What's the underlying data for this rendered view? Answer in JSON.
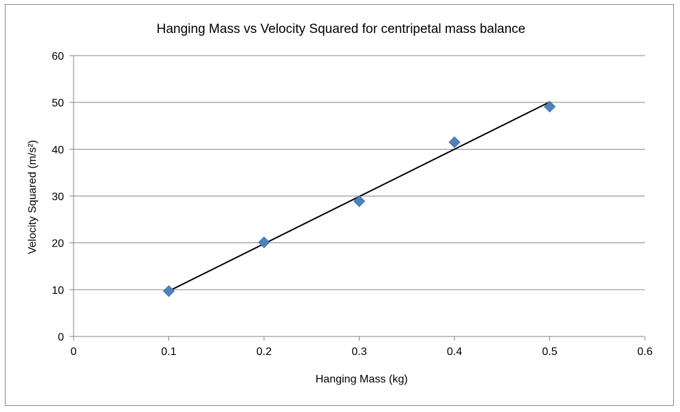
{
  "chart_data": {
    "type": "scatter",
    "title": "Hanging Mass vs Velocity Squared for centripetal mass balance",
    "xlabel": "Hanging Mass (kg)",
    "ylabel": "Velocity Squared (m/s²)",
    "xlim": [
      0,
      0.6
    ],
    "ylim": [
      0,
      60
    ],
    "x_ticks": [
      0,
      0.1,
      0.2,
      0.3,
      0.4,
      0.5,
      0.6
    ],
    "x_tick_labels": [
      "0",
      "0.1",
      "0.2",
      "0.3",
      "0.4",
      "0.5",
      "0.6"
    ],
    "y_ticks": [
      0,
      10,
      20,
      30,
      40,
      50,
      60
    ],
    "y_tick_labels": [
      "0",
      "10",
      "20",
      "30",
      "40",
      "50",
      "60"
    ],
    "grid": "horizontal",
    "legend": "none",
    "series": [
      {
        "name": "Data",
        "marker": "diamond",
        "color": "#4f81bd",
        "x": [
          0.1,
          0.2,
          0.3,
          0.4,
          0.5
        ],
        "y": [
          9.7,
          20.1,
          28.9,
          41.5,
          49.1
        ]
      }
    ],
    "trendline": {
      "type": "linear",
      "color": "#000000",
      "x": [
        0.1,
        0.5
      ],
      "y": [
        9.7,
        50.1
      ]
    }
  }
}
